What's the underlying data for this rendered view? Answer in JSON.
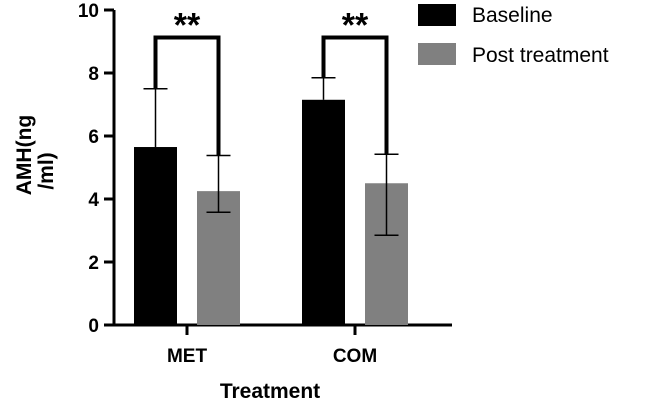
{
  "chart_data": {
    "type": "bar",
    "title": "",
    "xlabel": "Treatment",
    "ylabel_lines": [
      "AMH(ng",
      "/ml)"
    ],
    "ylim": [
      0,
      10
    ],
    "yticks": [
      "0",
      "2",
      "4",
      "6",
      "8",
      "10"
    ],
    "categories": [
      "MET",
      "COM"
    ],
    "series": [
      {
        "name": "Baseline",
        "color": "#000000",
        "values": [
          5.65,
          7.15
        ],
        "error_upper": [
          7.5,
          7.85
        ],
        "error_lower": [
          5.65,
          7.15
        ]
      },
      {
        "name": "Post treatment",
        "color": "#808080",
        "values": [
          4.25,
          4.5
        ],
        "error_upper": [
          5.38,
          5.42
        ],
        "error_lower": [
          3.58,
          2.85
        ]
      }
    ],
    "significance": [
      {
        "category": "MET",
        "label": "**",
        "bracket_level": 9.0
      },
      {
        "category": "COM",
        "label": "**",
        "bracket_level": 9.0
      }
    ],
    "legend_position": "top-right"
  }
}
